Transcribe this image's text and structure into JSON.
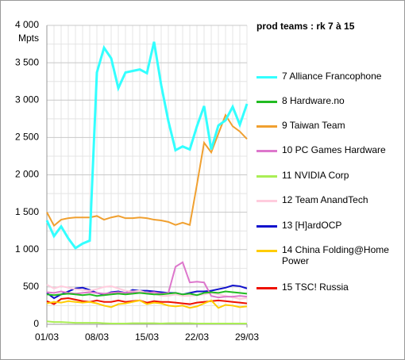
{
  "chart_data": {
    "type": "line",
    "title": "prod teams : rk 7 à 15",
    "y_label": "Mpts",
    "categories": [
      "01/03",
      null,
      null,
      null,
      null,
      null,
      null,
      "08/03",
      null,
      null,
      null,
      null,
      null,
      null,
      "15/03",
      null,
      null,
      null,
      null,
      null,
      null,
      "22/03",
      null,
      null,
      null,
      null,
      null,
      null,
      "29/03"
    ],
    "ylim": [
      0,
      4000
    ],
    "yticks": [
      0,
      500,
      {
        "value": 1000,
        "label": "1 000"
      },
      {
        "value": 1500,
        "label": "1 500"
      },
      {
        "value": 2000,
        "label": "2 000"
      },
      {
        "value": 2500,
        "label": "2 500"
      },
      {
        "value": 3000,
        "label": "3 000"
      },
      {
        "value": 3500,
        "label": "3 500"
      },
      {
        "value": 4000,
        "label": "4 000"
      }
    ],
    "grid": true,
    "series": [
      {
        "name": "7 Alliance Francophone",
        "color": "#33ffff",
        "values": [
          1390,
          1180,
          1310,
          1150,
          1020,
          1080,
          1120,
          3370,
          3700,
          3560,
          3160,
          3370,
          3390,
          3410,
          3360,
          3780,
          3200,
          2720,
          2330,
          2380,
          2340,
          2650,
          2920,
          2340,
          2660,
          2730,
          2910,
          2670,
          2950
        ]
      },
      {
        "name": "8 Hardware.no",
        "color": "#22bb22",
        "values": [
          400,
          390,
          400,
          410,
          400,
          390,
          400,
          380,
          390,
          400,
          410,
          400,
          410,
          420,
          410,
          400,
          400,
          410,
          420,
          400,
          410,
          390,
          420,
          430,
          420,
          440,
          430,
          420,
          410
        ]
      },
      {
        "name": "9 Taiwan Team",
        "color": "#f0a030",
        "values": [
          1500,
          1320,
          1400,
          1420,
          1430,
          1430,
          1430,
          1450,
          1400,
          1430,
          1450,
          1420,
          1420,
          1430,
          1420,
          1400,
          1390,
          1370,
          1330,
          1360,
          1330,
          1870,
          2430,
          2300,
          2550,
          2800,
          2650,
          2580,
          2480
        ]
      },
      {
        "name": "10 PC Games Hardware",
        "color": "#dd77cc",
        "values": [
          430,
          420,
          440,
          420,
          410,
          420,
          430,
          420,
          410,
          420,
          430,
          420,
          430,
          420,
          420,
          430,
          410,
          420,
          770,
          830,
          560,
          570,
          560,
          380,
          360,
          370,
          370,
          380,
          370
        ]
      },
      {
        "name": "11 NVIDIA Corp",
        "color": "#aaee55",
        "values": [
          40,
          30,
          30,
          25,
          20,
          20,
          20,
          20,
          15,
          10,
          10,
          10,
          15,
          15,
          15,
          15,
          10,
          15,
          15,
          15,
          15,
          10,
          10,
          10,
          10,
          10,
          10,
          10,
          10
        ]
      },
      {
        "name": "12 Team AnandTech",
        "color": "#ffccdd",
        "values": [
          530,
          480,
          510,
          490,
          470,
          460,
          450,
          470,
          500,
          510,
          480,
          450,
          440,
          450,
          420,
          410,
          380,
          380,
          400,
          380,
          380,
          390,
          400,
          420,
          400,
          380,
          360,
          340,
          350
        ]
      },
      {
        "name": "13 [H]ardOCP",
        "color": "#1010cc",
        "values": [
          420,
          350,
          400,
          440,
          480,
          490,
          460,
          420,
          400,
          430,
          440,
          420,
          460,
          450,
          450,
          440,
          430,
          420,
          420,
          400,
          420,
          440,
          440,
          450,
          470,
          490,
          520,
          510,
          480
        ]
      },
      {
        "name": "14 China Folding@Home Power",
        "color": "#ffcc00",
        "values": [
          280,
          300,
          290,
          310,
          300,
          290,
          300,
          280,
          250,
          230,
          270,
          280,
          300,
          320,
          270,
          290,
          280,
          250,
          240,
          250,
          220,
          240,
          280,
          320,
          220,
          260,
          250,
          230,
          240
        ]
      },
      {
        "name": "15 TSC! Russia",
        "color": "#ee1100",
        "values": [
          310,
          270,
          340,
          350,
          330,
          310,
          300,
          320,
          300,
          300,
          320,
          300,
          310,
          320,
          290,
          310,
          300,
          300,
          290,
          280,
          270,
          290,
          300,
          310,
          320,
          310,
          300,
          290,
          280
        ]
      }
    ]
  }
}
